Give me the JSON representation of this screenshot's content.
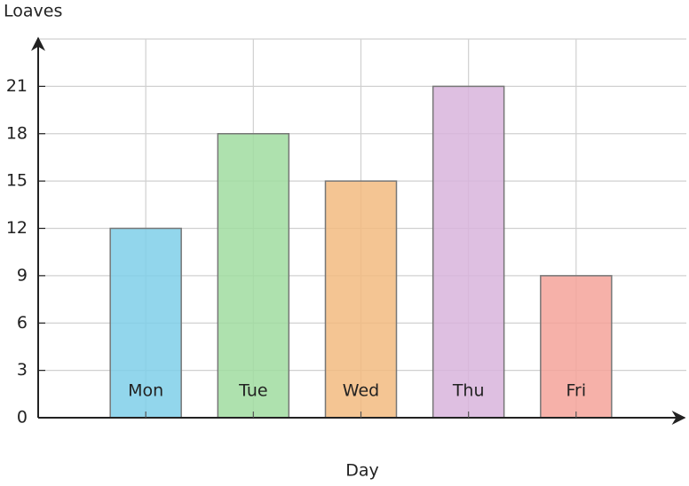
{
  "chart_data": {
    "type": "bar",
    "x_label": "Day",
    "y_label": "Loaves",
    "categories": [
      "Mon",
      "Tue",
      "Wed",
      "Thu",
      "Fri"
    ],
    "values": [
      12,
      18,
      15,
      21,
      9
    ],
    "colors": [
      "#7fcfe9",
      "#a0dca0",
      "#f2bb80",
      "#d8b4dc",
      "#f4a39a"
    ],
    "ylim": [
      0,
      24
    ],
    "yticks": [
      0,
      3,
      6,
      9,
      12,
      15,
      18,
      21
    ],
    "grid": true
  }
}
